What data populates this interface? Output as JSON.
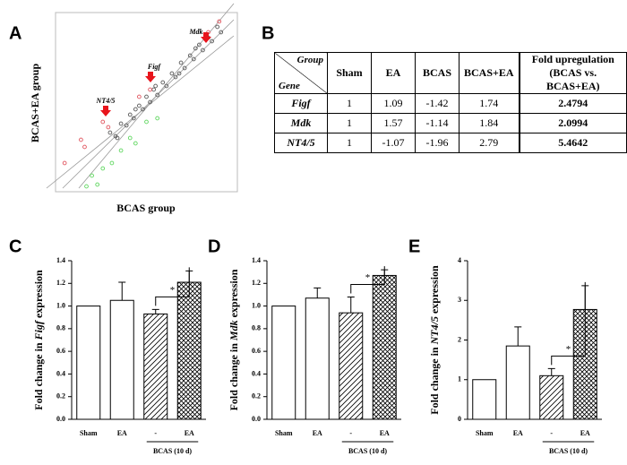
{
  "panel_labels": [
    "A",
    "B",
    "C",
    "D",
    "E"
  ],
  "chart_data": [
    {
      "type": "scatter",
      "xlabel": "BCAS group",
      "ylabel": "BCAS+EA group",
      "xlim": [
        0,
        10
      ],
      "ylim": [
        0,
        10
      ],
      "series": [
        {
          "color": "#555555",
          "x": [
            3.0,
            3.3,
            3.6,
            3.9,
            4.1,
            4.3,
            4.6,
            4.8,
            5.0,
            5.2,
            5.4,
            5.6,
            5.9,
            6.1,
            6.4,
            6.6,
            6.9,
            7.1,
            7.4,
            7.6,
            7.9,
            8.1,
            8.4,
            8.6,
            8.9,
            9.1,
            3.4,
            4.4,
            5.5,
            6.8,
            7.7
          ],
          "y": [
            3.3,
            3.1,
            3.8,
            3.7,
            4.3,
            4.1,
            4.8,
            4.6,
            5.3,
            5.0,
            5.7,
            5.4,
            6.1,
            5.9,
            6.6,
            6.4,
            7.2,
            6.9,
            7.6,
            7.4,
            8.2,
            7.9,
            8.6,
            8.4,
            9.2,
            8.9,
            3.0,
            4.6,
            5.9,
            6.6,
            8.0
          ]
        },
        {
          "color": "#e0505a",
          "x": [
            0.5,
            1.4,
            1.6,
            2.6,
            2.9,
            4.6,
            5.2,
            8.4,
            9.0
          ],
          "y": [
            1.6,
            2.9,
            2.5,
            3.9,
            3.6,
            5.3,
            5.7,
            8.9,
            9.5
          ]
        },
        {
          "color": "#5cd65c",
          "x": [
            1.7,
            2.0,
            2.3,
            2.6,
            3.1,
            3.6,
            4.1,
            4.4,
            5.0,
            5.6
          ],
          "y": [
            0.3,
            0.9,
            0.4,
            1.3,
            1.6,
            2.3,
            3.0,
            2.7,
            3.9,
            4.1
          ]
        }
      ],
      "annotations": [
        "Mdk",
        "Figf",
        "NT4/5"
      ]
    },
    {
      "type": "bar",
      "ylabel": [
        "Fold change in ",
        "Figf",
        " expression"
      ],
      "categories": [
        "Sham",
        "EA",
        "-",
        "EA"
      ],
      "group_label": "BCAS (10 d)",
      "values": [
        1.0,
        1.05,
        0.93,
        1.21
      ],
      "errors": [
        0,
        0.16,
        0.04,
        0.1
      ],
      "patterns": [
        "none",
        "none",
        "diagonal",
        "cross"
      ],
      "ylim": [
        0,
        1.4
      ],
      "yticks": [
        {
          "value": 0,
          "label": "0.0"
        },
        0.2,
        0.4,
        0.6,
        0.8,
        {
          "value": 1,
          "label": "1.0"
        },
        1.2,
        1.4
      ],
      "significance": "*"
    },
    {
      "type": "bar",
      "ylabel": [
        "Fold change in ",
        "Mdk",
        " expression"
      ],
      "categories": [
        "Sham",
        "EA",
        "-",
        "EA"
      ],
      "group_label": "BCAS (10 d)",
      "values": [
        1.0,
        1.07,
        0.94,
        1.27
      ],
      "errors": [
        0,
        0.09,
        0.14,
        0.05
      ],
      "patterns": [
        "none",
        "none",
        "diagonal",
        "cross"
      ],
      "ylim": [
        0,
        1.4
      ],
      "yticks": [
        {
          "value": 0,
          "label": "0.0"
        },
        0.2,
        0.4,
        0.6,
        0.8,
        {
          "value": 1,
          "label": "1.0"
        },
        1.2,
        1.4
      ],
      "significance": "*"
    },
    {
      "type": "bar",
      "ylabel": [
        "Fold change in ",
        "NT4/5",
        " expression"
      ],
      "categories": [
        "Sham",
        "EA",
        "-",
        "EA"
      ],
      "group_label": "BCAS (10 d)",
      "values": [
        1.0,
        1.85,
        1.1,
        2.77
      ],
      "errors": [
        0,
        0.48,
        0.18,
        0.6
      ],
      "patterns": [
        "none",
        "none",
        "diagonal",
        "cross"
      ],
      "ylim": [
        0,
        4
      ],
      "yticks": [
        0,
        1,
        2,
        3,
        4
      ],
      "significance": "*"
    }
  ],
  "table": {
    "corner": [
      "Group",
      "Gene"
    ],
    "header": [
      "Sham",
      "EA",
      "BCAS",
      "BCAS+EA",
      [
        "Fold upregulation",
        "(BCAS vs. BCAS+EA)"
      ]
    ],
    "rows": [
      [
        "Figf",
        "1",
        "1.09",
        "-1.42",
        "1.74",
        "2.4794"
      ],
      [
        "Mdk",
        "1",
        "1.57",
        "-1.14",
        "1.84",
        "2.0994"
      ],
      [
        "NT4/5",
        "1",
        "-1.07",
        "-1.96",
        "2.79",
        "5.4642"
      ]
    ]
  }
}
